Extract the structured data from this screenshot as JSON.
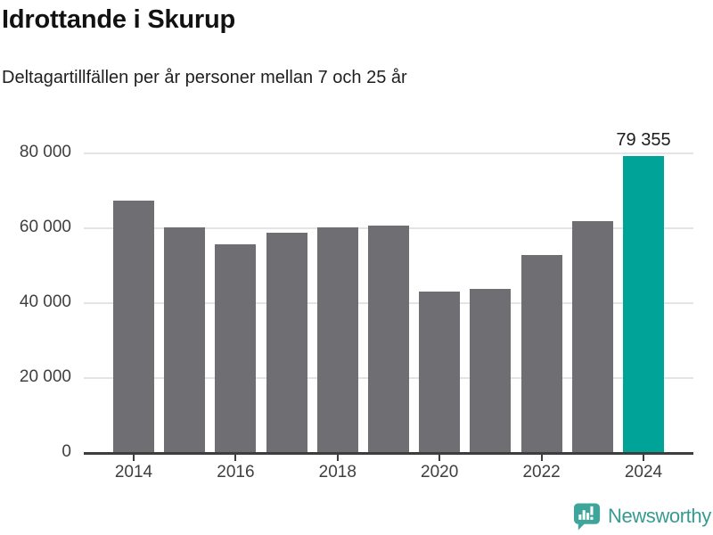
{
  "header": {
    "title": "Idrottande i Skurup",
    "subtitle": "Deltagartillfällen per år personer mellan 7 och 25 år"
  },
  "chart_data": {
    "type": "bar",
    "title": "Idrottande i Skurup",
    "subtitle": "Deltagartillfällen per år personer mellan 7 och 25 år",
    "categories": [
      "2014",
      "2015",
      "2016",
      "2017",
      "2018",
      "2019",
      "2020",
      "2021",
      "2022",
      "2023",
      "2024"
    ],
    "values": [
      67300,
      60200,
      55700,
      58800,
      60200,
      60700,
      43100,
      43800,
      52900,
      61800,
      79355
    ],
    "highlight": {
      "index": 10,
      "label": "79 355",
      "value": 79355
    },
    "xlabel": "",
    "ylabel": "",
    "x_axis": {
      "tick_labels": [
        "2014",
        "2016",
        "2018",
        "2020",
        "2022",
        "2024"
      ]
    },
    "y_axis": {
      "ticks": [
        0,
        20000,
        40000,
        60000,
        80000
      ],
      "tick_labels": [
        "0",
        "20 000",
        "40 000",
        "60 000",
        "80 000"
      ],
      "range": [
        0,
        80000
      ]
    },
    "grid": true,
    "legend": "none",
    "colors": {
      "bar": "#6e6e73",
      "highlight_bar": "#00a398",
      "gridline": "#e4e4e4",
      "axis": "#3d3d3d",
      "tick_label": "#3f3f3f",
      "value_label": "#1c1c1c"
    }
  },
  "footer": {
    "brand": "Newsworthy",
    "brand_color": "#389a91",
    "icon": "newsworthy-bubble-barchart-icon",
    "icon_color": "#3ea59a"
  }
}
